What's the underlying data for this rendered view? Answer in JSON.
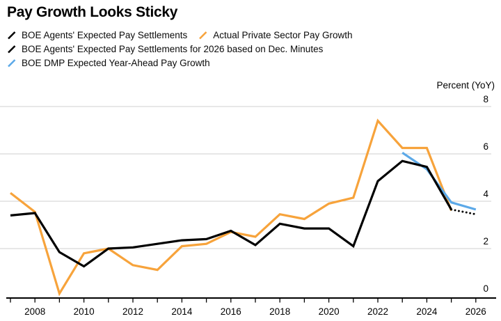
{
  "chart_data": {
    "type": "line",
    "title": "Pay Growth Looks Sticky",
    "ylabel": "Percent (YoY)",
    "xlabel": "",
    "ylim": [
      0,
      8
    ],
    "yticks": [
      0,
      2,
      4,
      6,
      8
    ],
    "xlim": [
      2007,
      2026
    ],
    "xtick_labels": [
      2008,
      2010,
      2012,
      2014,
      2016,
      2018,
      2020,
      2022,
      2024,
      2026
    ],
    "grid": "horizontal-only",
    "legend_position": "top-left",
    "colors": {
      "black": "#000000",
      "orange": "#F7A33B",
      "blue": "#5CA9E8",
      "gridline": "#cfcfcf",
      "axis": "#000000"
    },
    "series": [
      {
        "name": "Actual Private Sector Pay Growth",
        "color": "#F7A33B",
        "style": "solid",
        "x": [
          2007,
          2008,
          2009,
          2010,
          2011,
          2012,
          2013,
          2014,
          2015,
          2016,
          2017,
          2018,
          2019,
          2020,
          2021,
          2022,
          2023,
          2024,
          2025
        ],
        "values": [
          4.35,
          3.55,
          0.1,
          1.8,
          2.0,
          1.3,
          1.1,
          2.1,
          2.2,
          2.7,
          2.5,
          3.45,
          3.25,
          3.9,
          4.15,
          7.4,
          6.25,
          6.25,
          3.6
        ]
      },
      {
        "name": "BOE DMP Expected Year-Ahead Pay Growth",
        "color": "#5CA9E8",
        "style": "solid",
        "x": [
          2023,
          2024,
          2025,
          2026
        ],
        "values": [
          6.05,
          5.35,
          3.95,
          3.65
        ]
      },
      {
        "name": "BOE Agents' Expected Pay Settlements",
        "color": "#000000",
        "style": "solid",
        "x": [
          2007,
          2008,
          2009,
          2010,
          2011,
          2012,
          2013,
          2014,
          2015,
          2016,
          2017,
          2018,
          2019,
          2020,
          2021,
          2022,
          2023,
          2024,
          2025
        ],
        "values": [
          3.4,
          3.5,
          1.85,
          1.25,
          2.0,
          2.05,
          2.2,
          2.35,
          2.4,
          2.75,
          2.15,
          3.05,
          2.85,
          2.85,
          2.1,
          4.85,
          5.7,
          5.45,
          3.65
        ]
      },
      {
        "name": "BOE Agents' Expected Pay Settlements for 2026 based on Dec. Minutes",
        "color": "#000000",
        "style": "dotted",
        "x": [
          2025,
          2026
        ],
        "values": [
          3.65,
          3.45
        ]
      }
    ]
  },
  "legend": {
    "items": [
      {
        "label": "BOE Agents' Expected Pay Settlements",
        "color": "#000000"
      },
      {
        "label": "Actual Private Sector Pay Growth",
        "color": "#F7A33B"
      },
      {
        "label": "BOE Agents' Expected Pay Settlements for 2026 based on Dec. Minutes",
        "color": "#000000"
      },
      {
        "label": "BOE DMP Expected Year-Ahead Pay Growth",
        "color": "#5CA9E8"
      }
    ]
  }
}
